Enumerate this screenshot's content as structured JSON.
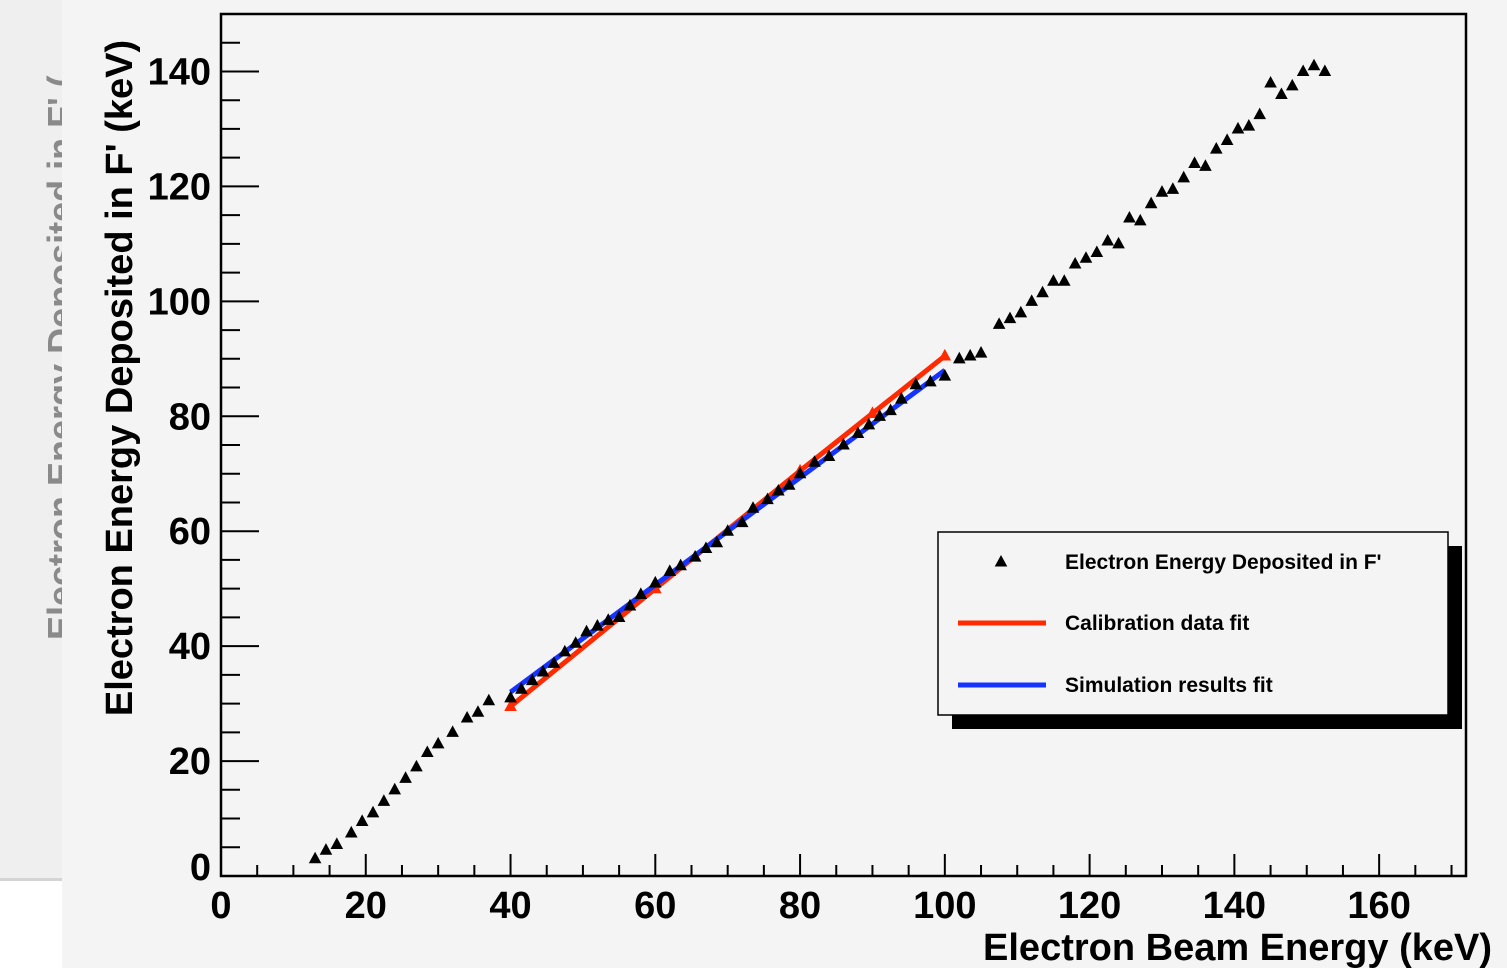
{
  "background": {
    "partial_axis_label": "Electron Energy Deposited in F' ("
  },
  "colors": {
    "background": "#f4f4f4",
    "markers": "#000000",
    "calibration_fit": "#ff2a00",
    "simulation_fit": "#1533ff",
    "axes": "#000000"
  },
  "chart_data": {
    "type": "scatter",
    "title": "",
    "xlabel": "Electron Beam Energy (keV)",
    "ylabel": "Electron Energy Deposited in F' (keV)",
    "xlim": [
      0,
      172
    ],
    "ylim": [
      0,
      150
    ],
    "x_ticks": [
      0,
      20,
      40,
      60,
      80,
      100,
      120,
      140,
      160
    ],
    "y_ticks": [
      0,
      20,
      40,
      60,
      80,
      100,
      120,
      140
    ],
    "grid": false,
    "legend_position": "right",
    "series": [
      {
        "name": "Electron Energy Deposited in F'",
        "marker": "triangle",
        "color": "#000000",
        "points": [
          [
            13,
            3
          ],
          [
            14.5,
            4.5
          ],
          [
            16,
            5.5
          ],
          [
            18,
            7.5
          ],
          [
            19.5,
            9.5
          ],
          [
            21,
            11
          ],
          [
            22.5,
            13
          ],
          [
            24,
            15
          ],
          [
            25.5,
            17
          ],
          [
            27,
            19
          ],
          [
            28.5,
            21.5
          ],
          [
            30,
            23
          ],
          [
            32,
            25
          ],
          [
            34,
            27.5
          ],
          [
            35.5,
            28.5
          ],
          [
            37,
            30.5
          ],
          [
            40,
            31
          ],
          [
            41.5,
            32.5
          ],
          [
            43,
            34
          ],
          [
            44.5,
            35.5
          ],
          [
            46,
            37
          ],
          [
            47.5,
            39
          ],
          [
            49,
            40.5
          ],
          [
            50.5,
            42.5
          ],
          [
            52,
            43.5
          ],
          [
            53.5,
            44.5
          ],
          [
            55,
            45
          ],
          [
            56.5,
            47
          ],
          [
            58,
            49
          ],
          [
            60,
            51
          ],
          [
            62,
            53
          ],
          [
            63.5,
            54
          ],
          [
            65.5,
            55.5
          ],
          [
            67,
            57
          ],
          [
            68.5,
            58
          ],
          [
            70,
            60
          ],
          [
            72,
            61.5
          ],
          [
            73.5,
            64
          ],
          [
            75.5,
            65.5
          ],
          [
            77,
            67
          ],
          [
            78.5,
            68
          ],
          [
            80,
            70
          ],
          [
            82,
            72
          ],
          [
            84,
            73
          ],
          [
            86,
            75
          ],
          [
            88,
            77
          ],
          [
            89.5,
            78.5
          ],
          [
            91,
            80
          ],
          [
            92.5,
            81
          ],
          [
            94,
            83
          ],
          [
            96,
            85.5
          ],
          [
            98,
            86
          ],
          [
            100,
            87
          ],
          [
            102,
            90
          ],
          [
            103.5,
            90.5
          ],
          [
            105,
            91
          ],
          [
            107.5,
            96
          ],
          [
            109,
            97
          ],
          [
            110.5,
            98
          ],
          [
            112,
            100
          ],
          [
            113.5,
            101.5
          ],
          [
            115,
            103.5
          ],
          [
            116.5,
            103.5
          ],
          [
            118,
            106.5
          ],
          [
            119.5,
            107.5
          ],
          [
            121,
            108.5
          ],
          [
            122.5,
            110.5
          ],
          [
            124,
            110
          ],
          [
            125.5,
            114.5
          ],
          [
            127,
            114
          ],
          [
            128.5,
            117
          ],
          [
            130,
            119
          ],
          [
            131.5,
            119.5
          ],
          [
            133,
            121.5
          ],
          [
            134.5,
            124
          ],
          [
            136,
            123.5
          ],
          [
            137.5,
            126.5
          ],
          [
            139,
            128
          ],
          [
            140.5,
            130
          ],
          [
            142,
            130.5
          ],
          [
            143.5,
            132.5
          ],
          [
            145,
            138
          ],
          [
            146.5,
            136
          ],
          [
            148,
            137.5
          ],
          [
            149.5,
            140
          ],
          [
            151,
            141
          ],
          [
            152.5,
            140
          ]
        ]
      },
      {
        "name": "Calibration data fit",
        "type": "line",
        "color": "#ff2a00",
        "points": [
          [
            40,
            29.5
          ],
          [
            60,
            50
          ],
          [
            80,
            70.5
          ],
          [
            90,
            80.5
          ],
          [
            100,
            90.5
          ]
        ]
      },
      {
        "name": "Simulation results fit",
        "type": "line",
        "color": "#1533ff",
        "points": [
          [
            40,
            32
          ],
          [
            100,
            88
          ]
        ]
      }
    ]
  }
}
